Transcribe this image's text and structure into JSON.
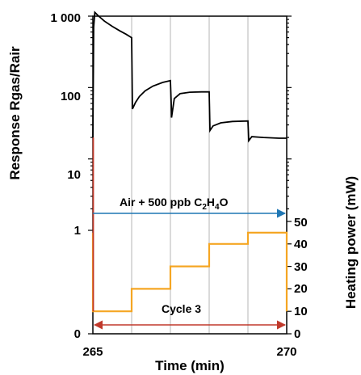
{
  "chart_data": {
    "type": "line",
    "xlabel": "Time (min)",
    "ylabel_left": "Response Rgas/Rair",
    "ylabel_right": "Heating power (mW)",
    "xlim": [
      265,
      270
    ],
    "x_ticks": [
      "265",
      "270"
    ],
    "x_gridlines": [
      266,
      267,
      268,
      269
    ],
    "yleft_ticks": [
      "1 000",
      "100",
      "10",
      "1",
      "0"
    ],
    "yright_ticks": [
      "0",
      "10",
      "20",
      "30",
      "40",
      "50"
    ],
    "yright_lim": [
      0,
      50
    ],
    "series": [
      {
        "color": "#000000",
        "axis": "left",
        "x": [
          265.0,
          265.02,
          265.05,
          265.15,
          265.3,
          265.5,
          265.7,
          265.85,
          266.0,
          266.02,
          266.1,
          266.2,
          266.35,
          266.55,
          266.8,
          267.0,
          267.02,
          267.03,
          267.1,
          267.25,
          267.5,
          267.8,
          268.0,
          268.02,
          268.1,
          268.3,
          268.6,
          269.0,
          269.02,
          269.1,
          269.4,
          269.8,
          270.0
        ],
        "y": [
          20,
          700,
          1130,
          1000,
          850,
          720,
          620,
          560,
          500,
          50,
          62,
          75,
          90,
          105,
          118,
          125,
          60,
          38,
          70,
          82,
          86,
          87,
          87,
          25,
          29,
          32,
          33.5,
          34,
          18,
          20.5,
          20,
          19.5,
          19.5
        ]
      },
      {
        "color": "#f5a623",
        "axis": "right",
        "x": [
          265.0,
          265.0,
          266.0,
          266.0,
          267.0,
          267.0,
          268.0,
          268.0,
          269.0,
          269.0,
          270.0,
          270.0
        ],
        "y": [
          45,
          10,
          10,
          20,
          20,
          30,
          30,
          40,
          40,
          45,
          45,
          10
        ]
      }
    ],
    "annotations": [
      {
        "text_prefix": "Air + 500 ppb C",
        "sub1": "2",
        "text_mid": "H",
        "sub2": "4",
        "text_suffix": "O",
        "arrow_color": "#1f77b4",
        "from": 265,
        "to": 270,
        "style": "single-headed-right"
      },
      {
        "text": "Cycle 3",
        "arrow_color": "#c0392b",
        "from": 265,
        "to": 270,
        "style": "double-headed"
      }
    ]
  }
}
